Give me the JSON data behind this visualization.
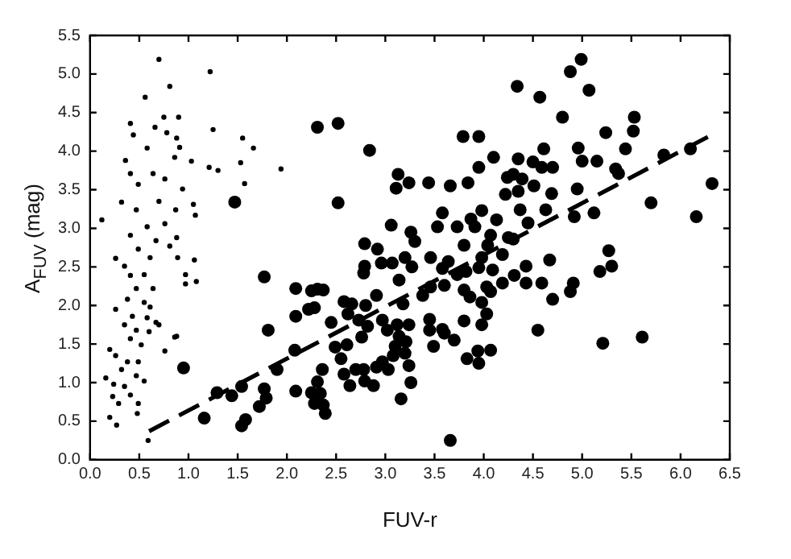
{
  "chart_data": {
    "type": "scatter",
    "xlabel": "FUV-r",
    "ylabel": "A$_{FUV}$ (mag)",
    "xlim": [
      0,
      6.5
    ],
    "ylim": [
      0,
      5.5
    ],
    "xticks": [
      {
        "value": 0,
        "label": "0.0"
      },
      0.5,
      {
        "value": 1,
        "label": "1.0"
      },
      1.5,
      {
        "value": 2,
        "label": "2.0"
      },
      2.5,
      {
        "value": 3,
        "label": "3.0"
      },
      3.5,
      {
        "value": 4,
        "label": "4.0"
      },
      4.5,
      {
        "value": 5,
        "label": "5.0"
      },
      5.5,
      {
        "value": 6,
        "label": "6.0"
      },
      6.5
    ],
    "yticks": [
      {
        "value": 0,
        "label": "0.0"
      },
      0.5,
      {
        "value": 1,
        "label": "1.0"
      },
      1.5,
      {
        "value": 2,
        "label": "2.0"
      },
      2.5,
      {
        "value": 3,
        "label": "3.0"
      },
      3.5,
      {
        "value": 4,
        "label": "4.0"
      },
      4.5,
      {
        "value": 5,
        "label": "5.0"
      },
      5.5
    ],
    "grid": false,
    "legend": false,
    "marker": "circle",
    "series": [
      {
        "color": "#000000",
        "x": [
          0.12,
          0.7,
          1.22,
          0.81,
          0.56,
          0.41,
          0.75,
          0.9,
          0.66,
          1.25,
          1.55,
          0.78,
          0.88,
          1.66,
          0.44,
          0.58,
          0.91,
          0.36,
          0.86,
          1.03,
          1.21,
          1.3,
          1.53,
          1.94,
          1.57,
          0.41,
          0.49,
          0.64,
          0.76,
          0.94,
          0.32,
          0.47,
          0.7,
          0.87,
          1.05,
          1.07,
          0.58,
          0.76,
          0.41,
          0.67,
          0.88,
          0.49,
          0.81,
          0.26,
          0.35,
          0.61,
          0.89,
          1.06,
          0.97,
          0.97,
          1.08,
          0.41,
          0.55,
          0.64,
          0.47,
          0.38,
          0.55,
          0.61,
          0.26,
          0.43,
          0.58,
          0.67,
          0.35,
          0.47,
          0.6,
          0.7,
          0.86,
          0.76,
          0.41,
          0.52,
          0.2,
          0.26,
          0.38,
          0.49,
          0.32,
          0.47,
          0.55,
          0.16,
          0.24,
          0.35,
          0.41,
          0.23,
          0.29,
          0.48,
          0.2,
          0.27,
          0.59,
          0.49,
          0.88
        ],
        "values": [
          3.11,
          5.19,
          5.03,
          4.84,
          4.7,
          4.36,
          4.44,
          4.44,
          4.31,
          4.28,
          4.17,
          4.24,
          4.17,
          4.04,
          4.21,
          4.04,
          4.05,
          3.88,
          3.92,
          3.87,
          3.79,
          3.75,
          3.85,
          3.77,
          3.58,
          3.71,
          3.57,
          3.71,
          3.64,
          3.51,
          3.34,
          3.24,
          3.35,
          3.24,
          3.31,
          3.17,
          3.02,
          3.06,
          2.91,
          2.84,
          2.88,
          2.73,
          2.77,
          2.61,
          2.51,
          2.62,
          2.62,
          2.59,
          2.4,
          2.28,
          2.31,
          2.39,
          2.4,
          2.22,
          2.22,
          2.08,
          2.04,
          1.98,
          1.95,
          1.86,
          1.84,
          1.78,
          1.75,
          1.68,
          1.66,
          1.75,
          1.59,
          1.41,
          1.57,
          1.49,
          1.43,
          1.35,
          1.27,
          1.27,
          1.17,
          1.09,
          1.02,
          1.06,
          0.98,
          0.95,
          0.84,
          0.82,
          0.73,
          0.6,
          0.55,
          0.45,
          0.25,
          0.73,
          1.6
        ]
      },
      {
        "color": "#000000",
        "x": [
          1.47,
          1.77,
          1.81,
          0.95,
          1.9,
          1.77,
          1.79,
          2.08,
          2.09,
          2.09,
          2.22,
          2.31,
          2.09,
          2.31,
          1.16,
          1.29,
          1.44,
          1.54,
          1.58,
          1.54,
          1.72,
          2.52,
          2.84,
          2.52,
          4.99,
          4.88,
          5.07,
          4.34,
          4.57,
          4.8,
          5.53,
          5.24,
          5.52,
          3.79,
          3.95,
          4.96,
          4.61,
          5.44,
          4.1,
          4.35,
          4.5,
          4.7,
          4.59,
          5.0,
          5.15,
          3.95,
          5.83,
          6.1,
          3.13,
          3.24,
          3.11,
          3.44,
          3.66,
          3.84,
          4.24,
          4.3,
          4.39,
          4.22,
          4.35,
          4.51,
          4.69,
          4.95,
          5.34,
          5.37,
          6.32,
          5.7,
          6.16,
          5.12,
          4.92,
          4.63,
          4.37,
          4.45,
          4.13,
          3.98,
          3.87,
          3.58,
          3.73,
          3.53,
          3.06,
          3.26,
          3.3,
          3.91,
          4.07,
          4.25,
          4.3,
          4.04,
          4.19,
          3.98,
          3.8,
          3.64,
          3.46,
          3.2,
          3.07,
          3.27,
          2.96,
          2.79,
          2.92,
          2.79,
          2.78,
          4.67,
          4.43,
          4.59,
          4.31,
          4.43,
          3.95,
          4.09,
          3.82,
          3.73,
          3.58,
          3.6,
          3.46,
          3.14,
          3.38,
          3.18,
          3.8,
          4.03,
          3.98,
          3.86,
          4.07,
          4.19,
          4.7,
          4.88,
          4.91,
          5.3,
          5.18,
          5.27,
          2.91,
          2.8,
          2.66,
          2.58,
          2.45,
          2.28,
          2.25,
          2.37,
          2.62,
          2.73,
          2.82,
          2.97,
          3.02,
          3.12,
          3.24,
          3.14,
          3.1,
          3.21,
          3.2,
          3.08,
          2.97,
          2.91,
          3.03,
          3.24,
          3.26,
          3.16,
          2.88,
          2.79,
          2.64,
          2.58,
          2.55,
          2.49,
          2.61,
          2.76,
          3.45,
          3.58,
          3.45,
          3.49,
          3.7,
          3.6,
          3.8,
          3.98,
          4.03,
          3.83,
          3.95,
          4.07,
          3.94,
          3.66,
          4.55,
          5.21,
          5.61,
          2.36,
          2.31,
          2.25,
          2.34,
          2.28,
          2.39,
          2.37,
          2.7,
          2.78
        ],
        "values": [
          3.34,
          2.37,
          1.68,
          1.19,
          1.17,
          0.92,
          0.8,
          1.42,
          1.86,
          2.22,
          1.95,
          2.21,
          0.89,
          4.31,
          0.54,
          0.87,
          0.83,
          0.95,
          0.52,
          0.44,
          0.69,
          4.36,
          4.01,
          3.33,
          5.19,
          5.03,
          4.79,
          4.84,
          4.7,
          4.44,
          4.44,
          4.24,
          4.26,
          4.19,
          4.19,
          4.04,
          4.03,
          4.03,
          3.92,
          3.9,
          3.86,
          3.79,
          3.79,
          3.87,
          3.87,
          3.79,
          3.95,
          4.03,
          3.7,
          3.59,
          3.52,
          3.59,
          3.55,
          3.59,
          3.66,
          3.7,
          3.64,
          3.44,
          3.48,
          3.55,
          3.45,
          3.51,
          3.77,
          3.71,
          3.58,
          3.33,
          3.15,
          3.2,
          3.15,
          3.24,
          3.24,
          3.07,
          3.11,
          3.23,
          3.12,
          3.2,
          3.02,
          3.02,
          3.04,
          2.95,
          2.83,
          3.02,
          2.91,
          2.88,
          2.86,
          2.78,
          2.66,
          2.62,
          2.78,
          2.57,
          2.62,
          2.62,
          2.55,
          2.5,
          2.55,
          2.8,
          2.73,
          2.51,
          2.42,
          2.59,
          2.51,
          2.29,
          2.39,
          2.29,
          2.49,
          2.46,
          2.44,
          2.4,
          2.48,
          2.26,
          2.24,
          2.33,
          2.13,
          2.02,
          2.2,
          2.24,
          2.04,
          2.11,
          2.18,
          2.29,
          2.08,
          2.18,
          2.29,
          2.51,
          2.44,
          2.71,
          2.13,
          2.0,
          2.02,
          2.05,
          1.78,
          1.97,
          2.19,
          2.2,
          1.89,
          1.81,
          1.73,
          1.81,
          1.68,
          1.75,
          1.75,
          1.6,
          1.47,
          1.53,
          1.38,
          1.35,
          1.27,
          1.2,
          1.17,
          1.22,
          1.0,
          0.79,
          0.96,
          1.02,
          0.96,
          1.11,
          1.31,
          1.46,
          1.49,
          1.59,
          1.82,
          1.69,
          1.68,
          1.47,
          1.55,
          1.64,
          1.8,
          1.75,
          1.89,
          1.31,
          1.25,
          1.42,
          1.41,
          0.25,
          1.68,
          1.51,
          1.59,
          1.17,
          1.01,
          0.87,
          0.86,
          0.73,
          0.6,
          0.71,
          1.17,
          1.17
        ]
      },
      {
        "type": "line",
        "color": "#000000",
        "line_style": "dashed",
        "marker": "none",
        "x": [
          0.6,
          6.3
        ],
        "values": [
          0.37,
          4.2
        ]
      }
    ]
  }
}
